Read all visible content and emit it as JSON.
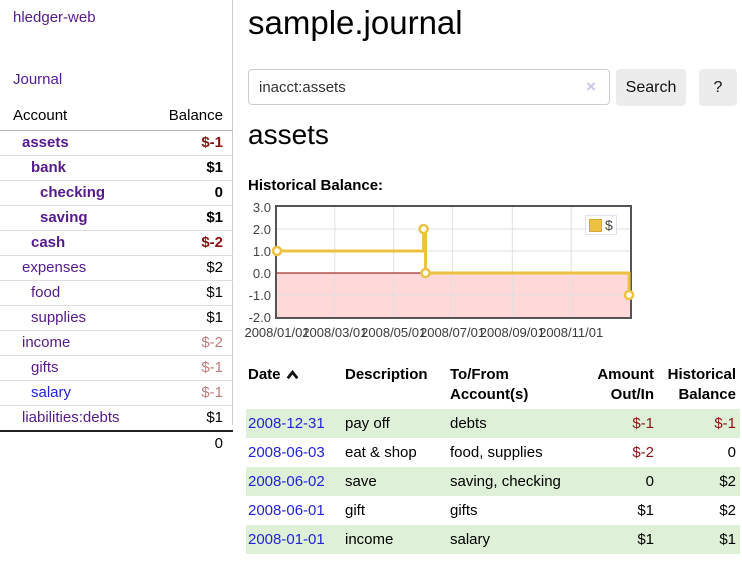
{
  "sidebar": {
    "app_title": "hledger-web",
    "journal_link": "Journal",
    "table": {
      "account_header": "Account",
      "balance_header": "Balance",
      "rows": [
        {
          "name": "assets",
          "balance": "$-1"
        },
        {
          "name": "bank",
          "balance": "$1"
        },
        {
          "name": "checking",
          "balance": "0"
        },
        {
          "name": "saving",
          "balance": "$1"
        },
        {
          "name": "cash",
          "balance": "$-2"
        },
        {
          "name": "expenses",
          "balance": "$2"
        },
        {
          "name": "food",
          "balance": "$1"
        },
        {
          "name": "supplies",
          "balance": "$1"
        },
        {
          "name": "income",
          "balance": "$-2"
        },
        {
          "name": "gifts",
          "balance": "$-1"
        },
        {
          "name": "salary",
          "balance": "$-1"
        },
        {
          "name": "liabilities:debts",
          "balance": "$1"
        }
      ],
      "total": "0"
    }
  },
  "main": {
    "title": "sample.journal",
    "search": {
      "value": "inacct:assets",
      "clear_icon": "×",
      "search_button": "Search",
      "help_button": "?"
    },
    "account_heading": "assets",
    "chart_heading": "Historical Balance:"
  },
  "chart_data": {
    "type": "line",
    "step": true,
    "title": "Historical Balance:",
    "series": [
      {
        "name": "$",
        "color": "#edc240",
        "points": [
          [
            "2008-01-01",
            1
          ],
          [
            "2008-06-01",
            2
          ],
          [
            "2008-06-03",
            0
          ],
          [
            "2008-12-31",
            -1
          ]
        ]
      }
    ],
    "xrange": [
      "2008-01-01",
      "2009-01-01"
    ],
    "xticks": [
      "2008/01/01",
      "2008/03/01",
      "2008/05/01",
      "2008/07/01",
      "2008/09/01",
      "2008/11/01"
    ],
    "yticks": [
      3.0,
      2.0,
      1.0,
      0.0,
      -1.0,
      -2.0
    ],
    "ylim": [
      -2,
      3
    ],
    "grid": true,
    "legend_position": "top-right",
    "negative_fill": "#ffd9d9",
    "zero_line_color": "#8b0000",
    "grid_color": "#e0e0e0"
  },
  "register": {
    "headers": {
      "date": "Date",
      "description": "Description",
      "accounts": "To/From Account(s)",
      "amount": "Amount Out/In",
      "balance": "Historical Balance"
    },
    "rows": [
      {
        "date": "2008-12-31",
        "description": "pay off",
        "accounts": "debts",
        "amount": "$-1",
        "balance": "$-1"
      },
      {
        "date": "2008-06-03",
        "description": "eat & shop",
        "accounts": "food, supplies",
        "amount": "$-2",
        "balance": "0"
      },
      {
        "date": "2008-06-02",
        "description": "save",
        "accounts": "saving, checking",
        "amount": "0",
        "balance": "$2"
      },
      {
        "date": "2008-06-01",
        "description": "gift",
        "accounts": "gifts",
        "amount": "$1",
        "balance": "$2"
      },
      {
        "date": "2008-01-01",
        "description": "income",
        "accounts": "salary",
        "amount": "$1",
        "balance": "$1"
      }
    ]
  }
}
